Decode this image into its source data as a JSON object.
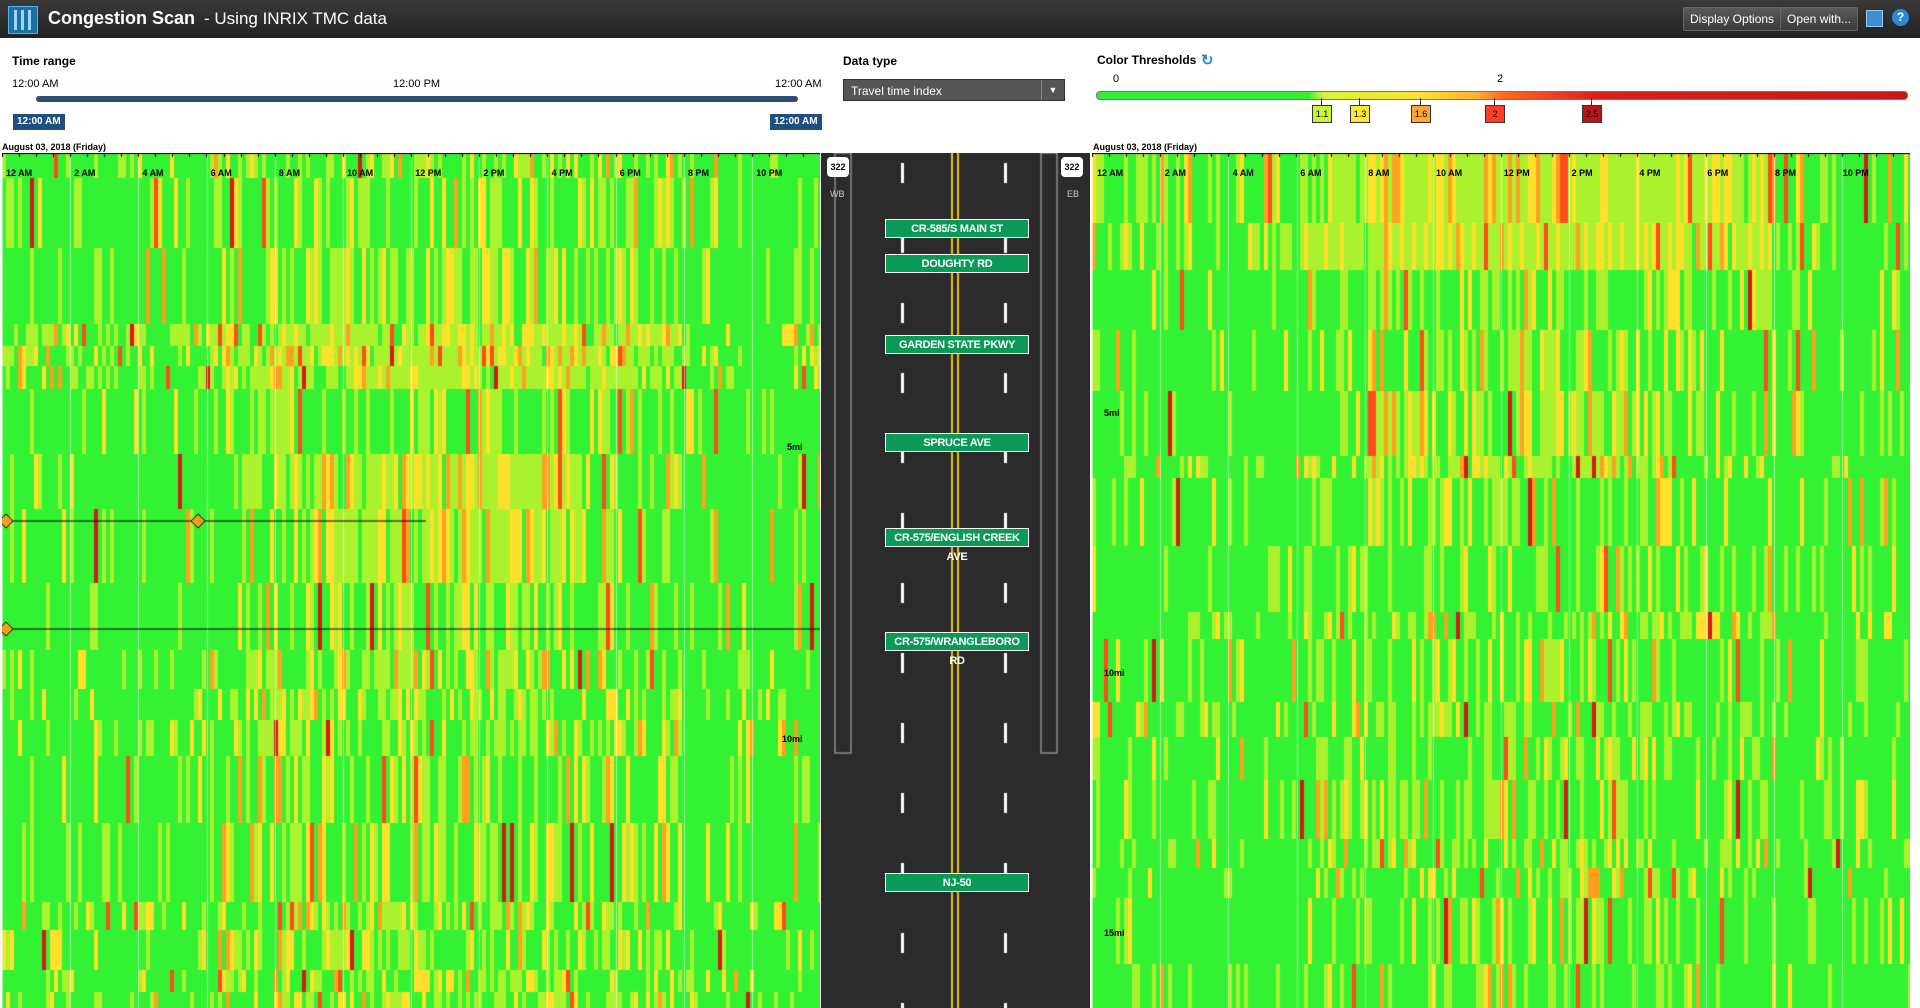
{
  "app": {
    "title": "Congestion Scan",
    "subtitle": "- Using INRIX TMC data",
    "display_options": "Display Options",
    "open_with": "Open with..."
  },
  "time_range": {
    "label": "Time range",
    "start": "12:00 AM",
    "mid": "12:00 PM",
    "end": "12:00 AM",
    "handle_start": "12:00 AM",
    "handle_end": "12:00 AM"
  },
  "data_type": {
    "label": "Data type",
    "selected": "Travel time index"
  },
  "thresholds": {
    "label": "Color Thresholds",
    "scale_min": "0",
    "scale_mid": "2",
    "markers": [
      {
        "label": "1.1",
        "color": "#c8f53c"
      },
      {
        "label": "1.3",
        "color": "#ffe833"
      },
      {
        "label": "1.6",
        "color": "#ffa62e"
      },
      {
        "label": "2",
        "color": "#ff3d1f"
      },
      {
        "label": "2.5",
        "color": "#c01414"
      }
    ]
  },
  "colors": {
    "free": "#33f233",
    "light": "#aaf22e",
    "moderate": "#ffe02a",
    "heavy": "#ffa020",
    "severe": "#ff4c1a",
    "extreme": "#d61818"
  },
  "panels": {
    "left": {
      "date": "August 03, 2018 (Friday)",
      "direction": "WB",
      "ticks": [
        "12 AM",
        "2 AM",
        "4 AM",
        "6 AM",
        "8 AM",
        "10 AM",
        "12 PM",
        "2 PM",
        "4 PM",
        "6 PM",
        "8 PM",
        "10 PM"
      ],
      "miles": [
        "5mi",
        "10mi"
      ]
    },
    "right": {
      "date": "August 03, 2018 (Friday)",
      "direction": "EB",
      "ticks": [
        "12 AM",
        "2 AM",
        "4 AM",
        "6 AM",
        "8 AM",
        "10 AM",
        "12 PM",
        "2 PM",
        "4 PM",
        "6 PM",
        "8 PM",
        "10 PM"
      ],
      "miles": [
        "5mi",
        "10mi",
        "15mi"
      ]
    }
  },
  "route": {
    "shield": "322",
    "signs": [
      "CR-585/S MAIN ST",
      "DOUGHTY RD",
      "GARDEN STATE PKWY",
      "SPRUCE AVE",
      "CR-575/ENGLISH CREEK AVE",
      "CR-575/WRANGLEBORO RD",
      "NJ-50"
    ]
  }
}
